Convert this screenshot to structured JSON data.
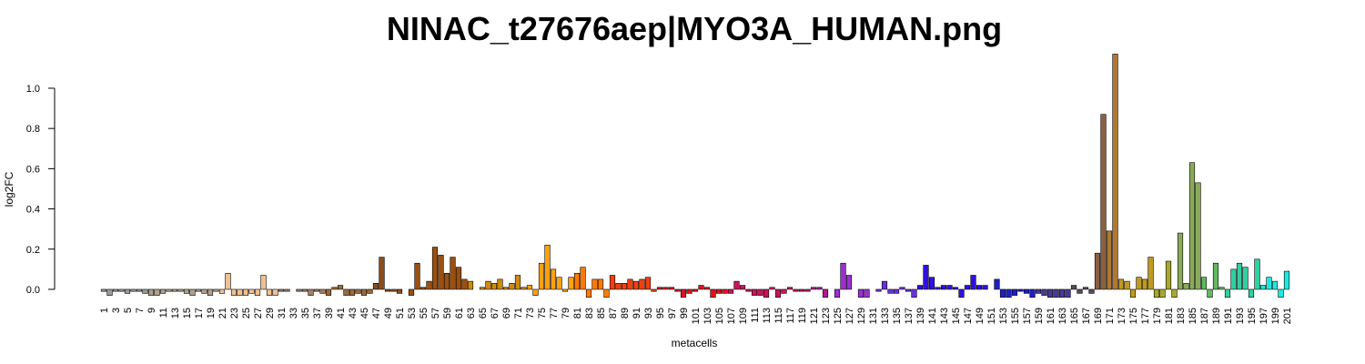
{
  "chart_data": {
    "type": "bar",
    "title": "NINAC_t27676aep|MYO3A_HUMAN.png",
    "xlabel": "metacells",
    "ylabel": "log2FC",
    "categories": [
      "1",
      null,
      "3",
      null,
      "5",
      null,
      "7",
      null,
      "9",
      null,
      "11",
      null,
      "13",
      null,
      "15",
      null,
      "17",
      null,
      "19",
      null,
      "21",
      null,
      "23",
      null,
      "25",
      null,
      "27",
      null,
      "29",
      null,
      "31",
      null,
      "33",
      null,
      "35",
      null,
      "37",
      null,
      "39",
      null,
      "41",
      null,
      "43",
      null,
      "45",
      null,
      "47",
      null,
      "49",
      null,
      "51",
      null,
      "53",
      null,
      "55",
      null,
      "57",
      null,
      "59",
      null,
      "61",
      null,
      "63",
      null,
      "65",
      null,
      "67",
      null,
      "69",
      null,
      "71",
      null,
      "73",
      null,
      "75",
      null,
      "77",
      null,
      "79",
      null,
      "81",
      null,
      "83",
      null,
      "85",
      null,
      "87",
      null,
      "89",
      null,
      "91",
      null,
      "93",
      null,
      "95",
      null,
      "97",
      null,
      "99",
      null,
      "101",
      null,
      "103",
      null,
      "105",
      null,
      "107",
      null,
      "109",
      null,
      "111",
      null,
      "113",
      null,
      "115",
      null,
      "117",
      null,
      "119",
      null,
      "121",
      null,
      "123",
      null,
      "125",
      null,
      "127",
      null,
      "129",
      null,
      "131",
      null,
      "133",
      null,
      "135",
      null,
      "137",
      null,
      "139",
      null,
      "141",
      null,
      "143",
      null,
      "145",
      null,
      "147",
      null,
      "149",
      null,
      "151",
      null,
      "153",
      null,
      "155",
      null,
      "157",
      null,
      "159",
      null,
      "161",
      null,
      "163",
      null,
      "165",
      null,
      "167",
      null,
      "169",
      null,
      "171",
      null,
      "173",
      null,
      "175",
      null,
      "177",
      null,
      "179",
      null,
      "181",
      null,
      "183",
      null,
      "185",
      null,
      "187",
      null,
      "189",
      null,
      "191",
      null,
      "193",
      null,
      "195",
      null,
      "197",
      null,
      "199",
      null,
      "201"
    ],
    "values": [
      -0.01,
      -0.03,
      -0.01,
      -0.01,
      -0.02,
      -0.01,
      -0.01,
      -0.02,
      -0.03,
      -0.03,
      -0.02,
      -0.01,
      -0.01,
      -0.01,
      -0.02,
      -0.03,
      -0.01,
      -0.02,
      -0.03,
      -0.01,
      -0.02,
      0.08,
      -0.03,
      -0.03,
      -0.03,
      -0.02,
      -0.03,
      0.07,
      -0.03,
      -0.03,
      -0.01,
      -0.01,
      0.0,
      -0.01,
      -0.01,
      -0.03,
      -0.01,
      -0.02,
      -0.03,
      0.01,
      0.02,
      -0.03,
      -0.03,
      -0.02,
      -0.03,
      -0.02,
      0.03,
      0.16,
      -0.01,
      -0.01,
      -0.02,
      0.0,
      -0.03,
      0.13,
      0.01,
      0.04,
      0.21,
      0.17,
      0.08,
      0.16,
      0.11,
      0.05,
      0.04,
      0.0,
      0.01,
      0.04,
      0.03,
      0.05,
      0.01,
      0.03,
      0.07,
      0.01,
      0.02,
      -0.03,
      0.13,
      0.22,
      0.1,
      0.06,
      -0.01,
      0.06,
      0.08,
      0.11,
      -0.04,
      0.05,
      0.05,
      -0.04,
      0.07,
      0.03,
      0.03,
      0.05,
      0.04,
      0.05,
      0.06,
      -0.01,
      0.01,
      0.01,
      0.01,
      -0.01,
      -0.04,
      -0.02,
      -0.01,
      0.02,
      0.01,
      -0.04,
      -0.02,
      -0.02,
      -0.02,
      0.04,
      0.02,
      -0.01,
      -0.03,
      -0.03,
      -0.04,
      0.01,
      -0.04,
      -0.02,
      0.01,
      -0.01,
      -0.01,
      -0.01,
      0.01,
      0.01,
      -0.04,
      0.0,
      -0.04,
      0.13,
      0.07,
      0.0,
      -0.04,
      -0.04,
      0.0,
      -0.01,
      0.04,
      -0.02,
      -0.02,
      0.01,
      -0.01,
      -0.04,
      0.02,
      0.12,
      0.06,
      0.01,
      0.02,
      0.02,
      0.01,
      -0.04,
      0.02,
      0.07,
      0.02,
      0.02,
      0.0,
      0.05,
      -0.04,
      -0.04,
      -0.03,
      -0.01,
      -0.02,
      -0.04,
      -0.02,
      -0.03,
      -0.04,
      -0.04,
      -0.04,
      -0.04,
      0.02,
      -0.02,
      0.01,
      -0.02,
      0.18,
      0.87,
      0.29,
      1.17,
      0.05,
      0.04,
      -0.04,
      0.06,
      0.05,
      0.16,
      -0.04,
      -0.04,
      0.14,
      -0.04,
      0.28,
      0.03,
      0.63,
      0.53,
      0.06,
      -0.04,
      0.13,
      0.01,
      -0.04,
      0.1,
      0.13,
      0.11,
      -0.04,
      0.15,
      0.02,
      0.06,
      0.04,
      -0.04,
      0.09
    ],
    "colors": [
      "#9a9a9a",
      "#9a9a9a",
      "#9a9a9a",
      "#9a9a9a",
      "#9a9a9a",
      "#9a9a9a",
      "#9a9a9a",
      "#9a9a9a",
      "#b0a090",
      "#b0a090",
      "#b0a090",
      "#b0a090",
      "#b0a090",
      "#b0a090",
      "#b0a090",
      "#b0a090",
      "#b0a090",
      "#b0a090",
      "#b0a090",
      "#b0a090",
      "#f0c090",
      "#f0c090",
      "#f0c090",
      "#f0c090",
      "#f0c090",
      "#f0c090",
      "#f0c090",
      "#f0c090",
      "#f0c090",
      "#f0c090",
      "#a08060",
      "#a08060",
      "#a08060",
      "#a08060",
      "#a08060",
      "#a08060",
      "#a08060",
      "#a08060",
      "#9a6a3a",
      "#9a6a3a",
      "#9a6a3a",
      "#9a6a3a",
      "#9a6a3a",
      "#9a6a3a",
      "#9a6a3a",
      "#9a6a3a",
      "#8b4c1c",
      "#8b4c1c",
      "#8b4c1c",
      "#8b4c1c",
      "#8b4c1c",
      "#8b4c1c",
      "#9a5010",
      "#9a5010",
      "#9a5010",
      "#9a5010",
      "#9a5010",
      "#9a5010",
      "#9a5010",
      "#9a5010",
      "#9a5010",
      "#9a5010",
      "#d08a10",
      "#d08a10",
      "#d08a10",
      "#d08a10",
      "#d08a10",
      "#d08a10",
      "#d08a10",
      "#d08a10",
      "#d08a10",
      "#d08a10",
      "#ffa010",
      "#ffa010",
      "#ffa010",
      "#ffa010",
      "#ffa010",
      "#ffa010",
      "#ffa010",
      "#ffa010",
      "#ff7a00",
      "#ff7a00",
      "#ff7a00",
      "#ff7a00",
      "#ff7a00",
      "#ff7a00",
      "#f04010",
      "#f04010",
      "#f04010",
      "#f04010",
      "#f04010",
      "#f04010",
      "#f04010",
      "#f04010",
      "#e01020",
      "#e01020",
      "#e01020",
      "#e01020",
      "#e01020",
      "#e01020",
      "#e01020",
      "#e01020",
      "#e01020",
      "#e01020",
      "#e01020",
      "#e01020",
      "#c8145a",
      "#c8145a",
      "#c8145a",
      "#c8145a",
      "#c8145a",
      "#c8145a",
      "#c8145a",
      "#c8145a",
      "#c8145a",
      "#c8145a",
      "#c8145a",
      "#c8145a",
      "#c8145a",
      "#c8145a",
      "#b01890",
      "#b01890",
      "#b01890",
      "#b01890",
      "#9a30d0",
      "#9a30d0",
      "#9a30d0",
      "#9a30d0",
      "#9a30d0",
      "#9a30d0",
      "#6a30d8",
      "#6a30d8",
      "#6a30d8",
      "#6a30d8",
      "#6a30d8",
      "#6a30d8",
      "#6a30d8",
      "#6a30d8",
      "#3010e0",
      "#3010e0",
      "#3010e0",
      "#3010e0",
      "#3010e0",
      "#3010e0",
      "#3010e0",
      "#3010e0",
      "#3010e0",
      "#3010e0",
      "#3010e0",
      "#3010e0",
      "#2020c0",
      "#2020c0",
      "#2020c0",
      "#2020c0",
      "#2020c0",
      "#2020c0",
      "#2020c0",
      "#2020c0",
      "#483a90",
      "#483a90",
      "#483a90",
      "#483a90",
      "#483a90",
      "#483a90",
      "#5a4a5a",
      "#5a4a5a",
      "#5a4a5a",
      "#5a4a5a",
      "#8b6040",
      "#8b6040",
      "#b07830",
      "#b07830",
      "#c09a20",
      "#c09a20",
      "#c09a20",
      "#c09a20",
      "#c09a20",
      "#c09a20",
      "#a8a830",
      "#a8a830",
      "#a8a830",
      "#a8a830",
      "#8aaa5a",
      "#8aaa5a",
      "#8aaa5a",
      "#8aaa5a",
      "#60b860",
      "#60b860",
      "#60b860",
      "#60b860",
      "#30d0a0",
      "#30d0a0",
      "#30d0a0",
      "#30d0a0",
      "#30d0a0",
      "#30d0a0",
      "#20e8e0",
      "#20e8e0",
      "#20e8e0",
      "#20e8e0",
      "#20e8e0"
    ],
    "ylim": [
      -0.04,
      1.17
    ],
    "yticks": [
      {
        "value": 0,
        "label": "0.0"
      },
      0.2,
      0.4,
      0.6,
      0.8,
      {
        "value": 1,
        "label": "1.0"
      }
    ]
  }
}
